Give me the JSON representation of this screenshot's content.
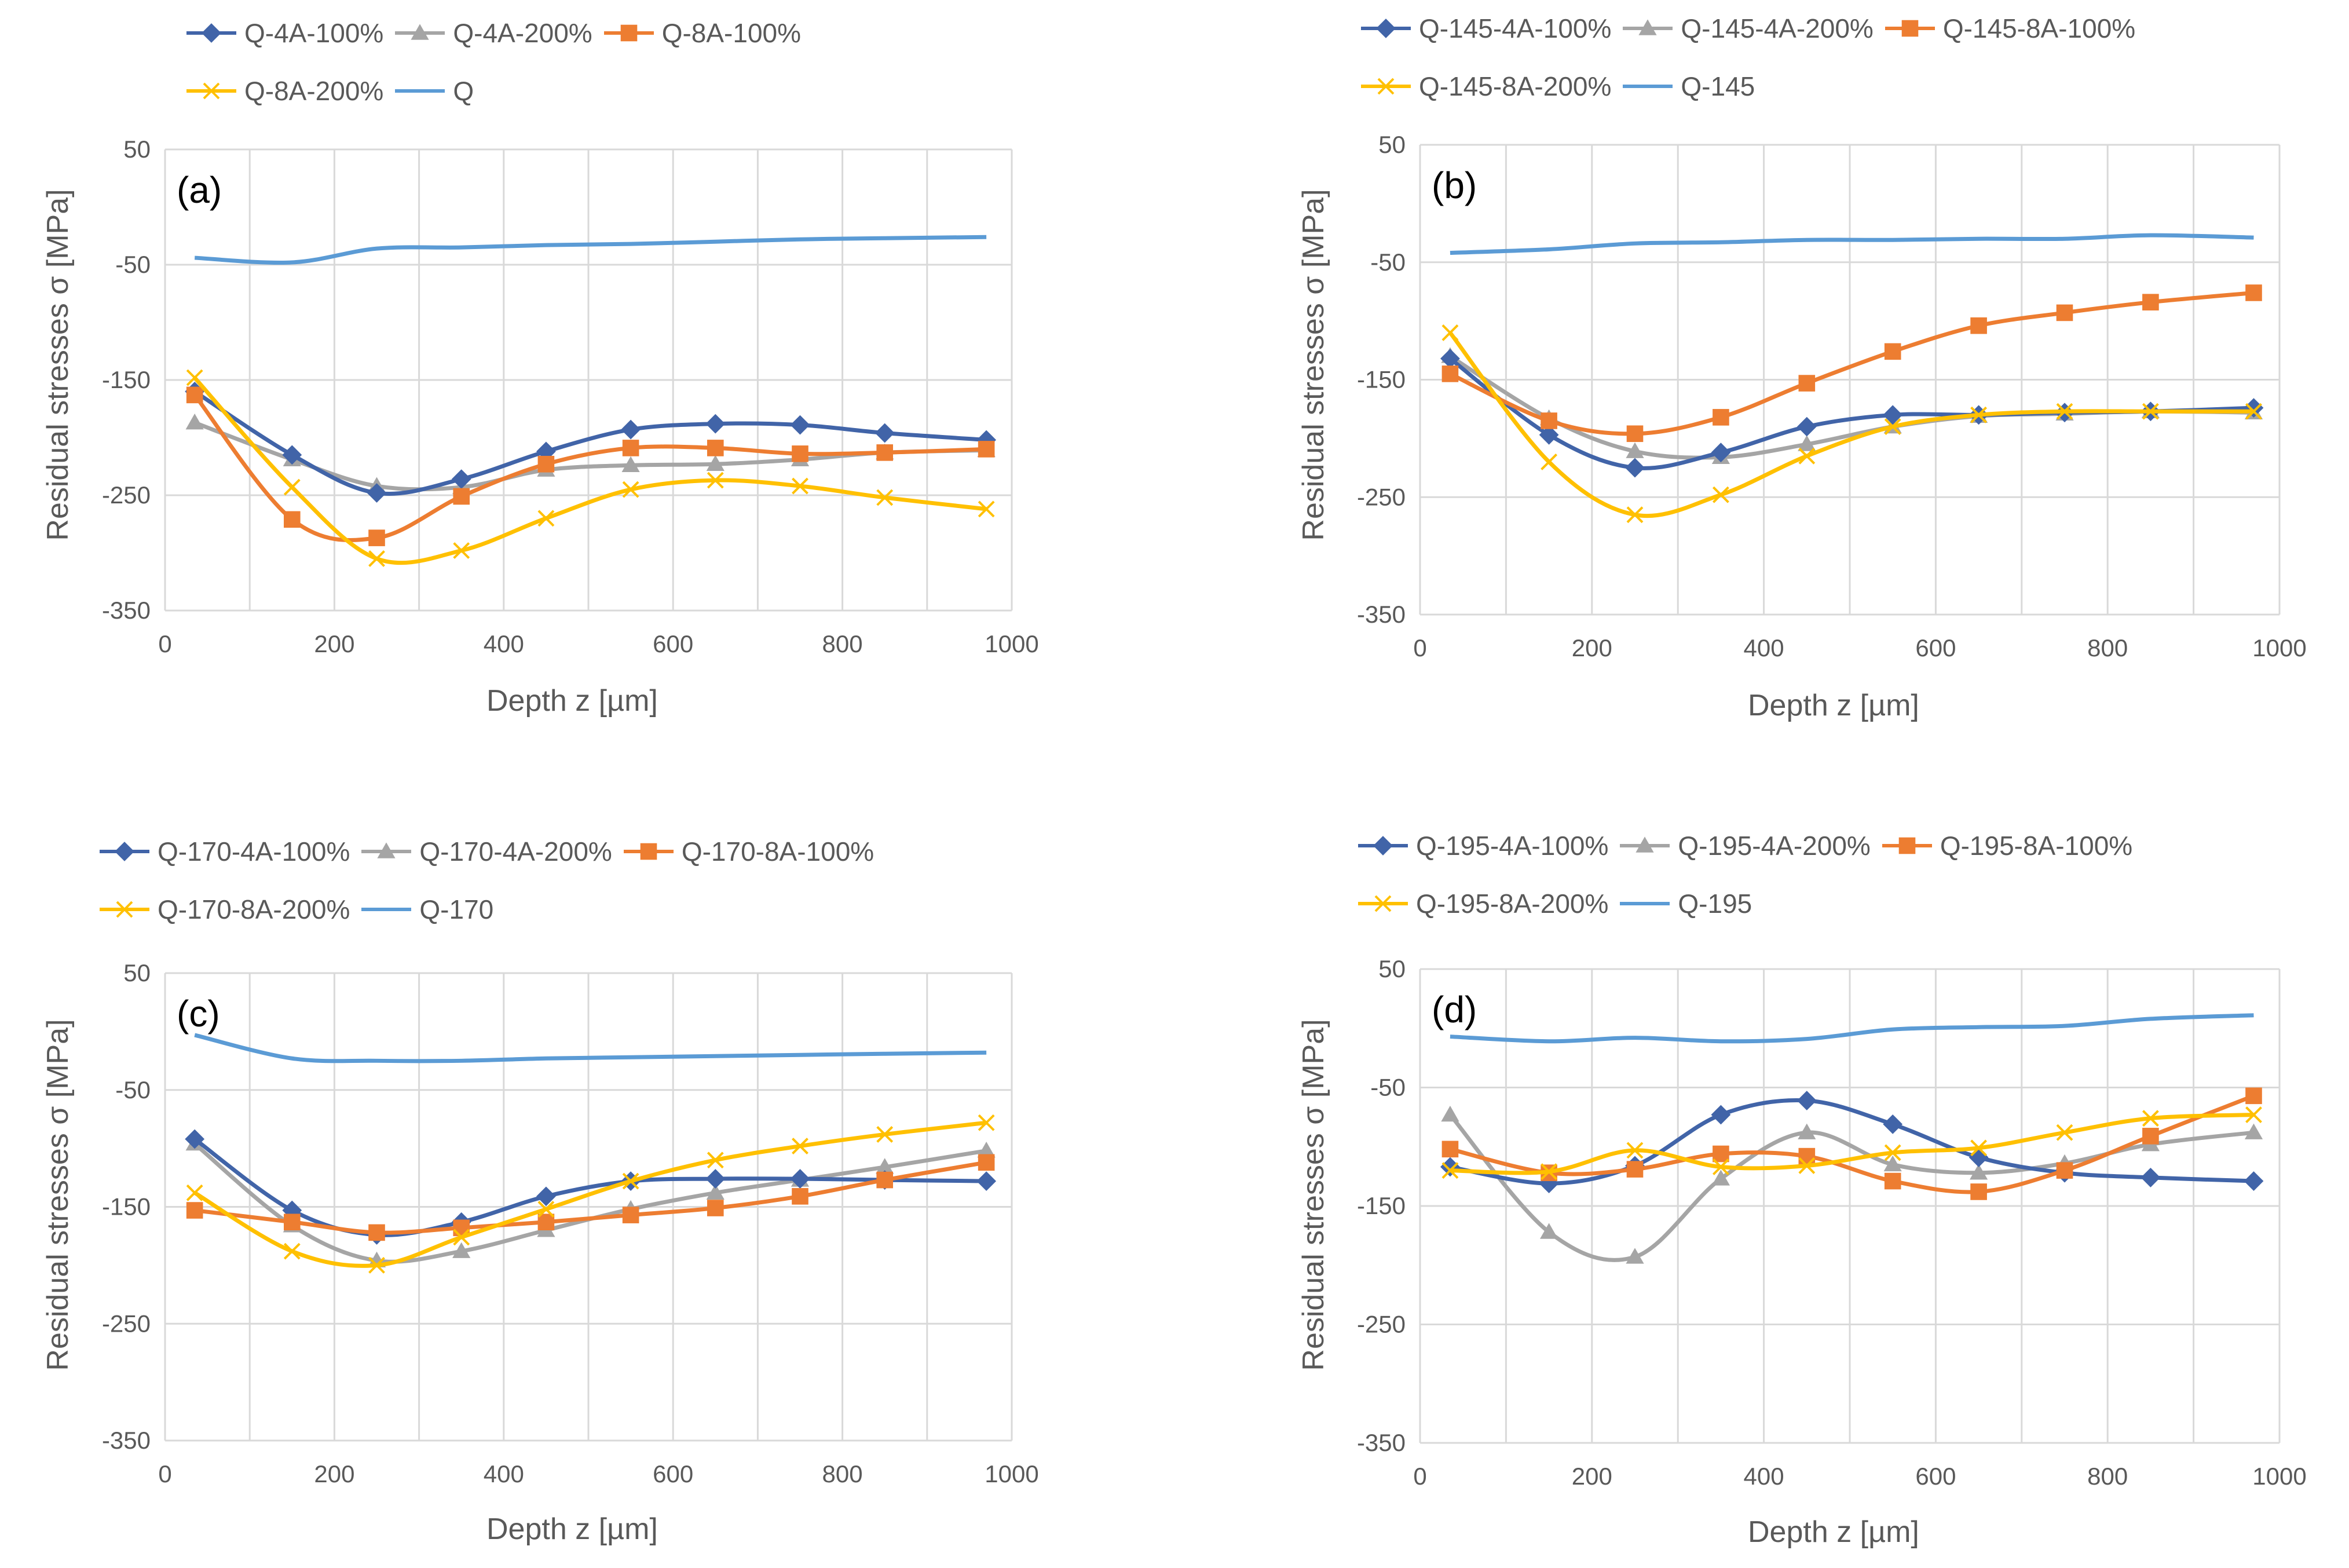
{
  "colors": {
    "blue_dark": "#4164A8",
    "gray": "#A5A5A5",
    "orange": "#ED7D31",
    "yellow": "#FFC000",
    "blue_light": "#5B9BD5",
    "grid": "#D9D9D9",
    "text": "#595959"
  },
  "chart_data": [
    {
      "type": "line",
      "panel_label": "(a)",
      "xlabel": "Depth z [µm]",
      "ylabel": "Residual stresses σ [MPa]",
      "xlim": [
        0,
        1000
      ],
      "ylim": [
        -350,
        50
      ],
      "xticks": [
        0,
        200,
        400,
        600,
        800,
        1000
      ],
      "yticks": [
        50,
        -50,
        -150,
        -250,
        -350
      ],
      "x": [
        35,
        150,
        250,
        350,
        450,
        550,
        650,
        750,
        850,
        970
      ],
      "series": [
        {
          "name": "Q-4A-100%",
          "color": "#4164A8",
          "marker": "diamond",
          "values": [
            -160,
            -215,
            -248,
            -236,
            -212,
            -193,
            -188,
            -189,
            -196,
            -202
          ]
        },
        {
          "name": "Q-4A-200%",
          "color": "#A5A5A5",
          "marker": "triangle",
          "values": [
            -187,
            -219,
            -242,
            -243,
            -228,
            -224,
            -223,
            -219,
            -213,
            -211
          ]
        },
        {
          "name": "Q-8A-100%",
          "color": "#ED7D31",
          "marker": "square",
          "values": [
            -163,
            -271,
            -287,
            -251,
            -223,
            -209,
            -209,
            -214,
            -213,
            -210
          ]
        },
        {
          "name": "Q-8A-200%",
          "color": "#FFC000",
          "marker": "x",
          "values": [
            -148,
            -243,
            -305,
            -298,
            -270,
            -245,
            -237,
            -242,
            -252,
            -262
          ]
        },
        {
          "name": "Q",
          "color": "#5B9BD5",
          "marker": "none",
          "x": [
            35,
            150,
            250,
            350,
            450,
            550,
            650,
            750,
            850,
            970
          ],
          "values": [
            -44,
            -48,
            -36,
            -35,
            -33,
            -32,
            -30,
            -28,
            -27,
            -26
          ]
        }
      ]
    },
    {
      "type": "line",
      "panel_label": "(b)",
      "xlabel": "Depth z [µm]",
      "ylabel": "Residual stresses σ [MPa]",
      "xlim": [
        0,
        1000
      ],
      "ylim": [
        -350,
        50
      ],
      "xticks": [
        0,
        200,
        400,
        600,
        800,
        1000
      ],
      "yticks": [
        50,
        -50,
        -150,
        -250,
        -350
      ],
      "x": [
        35,
        150,
        250,
        350,
        450,
        550,
        650,
        750,
        850,
        970
      ],
      "series": [
        {
          "name": "Q-145-4A-100%",
          "color": "#4164A8",
          "marker": "diamond",
          "values": [
            -132,
            -197,
            -225,
            -212,
            -190,
            -180,
            -180,
            -178,
            -177,
            -174
          ]
        },
        {
          "name": "Q-145-4A-200%",
          "color": "#A5A5A5",
          "marker": "triangle",
          "values": [
            -130,
            -183,
            -211,
            -216,
            -205,
            -190,
            -181,
            -179,
            -177,
            -178
          ]
        },
        {
          "name": "Q-145-8A-100%",
          "color": "#ED7D31",
          "marker": "square",
          "values": [
            -145,
            -185,
            -196,
            -182,
            -153,
            -126,
            -104,
            -93,
            -84,
            -76
          ]
        },
        {
          "name": "Q-145-8A-200%",
          "color": "#FFC000",
          "marker": "x",
          "values": [
            -110,
            -220,
            -265,
            -248,
            -215,
            -190,
            -180,
            -177,
            -177,
            -177
          ]
        },
        {
          "name": "Q-145",
          "color": "#5B9BD5",
          "marker": "none",
          "x": [
            35,
            150,
            250,
            350,
            450,
            550,
            650,
            750,
            850,
            970
          ],
          "values": [
            -42,
            -39,
            -34,
            -33,
            -31,
            -31,
            -30,
            -30,
            -27,
            -29
          ]
        }
      ]
    },
    {
      "type": "line",
      "panel_label": "(c)",
      "xlabel": "Depth z [µm]",
      "ylabel": "Residual stresses σ [MPa]",
      "xlim": [
        0,
        1000
      ],
      "ylim": [
        -350,
        50
      ],
      "xticks": [
        0,
        200,
        400,
        600,
        800,
        1000
      ],
      "yticks": [
        50,
        -50,
        -150,
        -250,
        -350
      ],
      "x": [
        35,
        150,
        250,
        350,
        450,
        550,
        650,
        750,
        850,
        970
      ],
      "series": [
        {
          "name": "Q-170-4A-100%",
          "color": "#4164A8",
          "marker": "diamond",
          "values": [
            -92,
            -153,
            -174,
            -163,
            -141,
            -128,
            -126,
            -126,
            -127,
            -128
          ]
        },
        {
          "name": "Q-170-4A-200%",
          "color": "#A5A5A5",
          "marker": "triangle",
          "values": [
            -96,
            -166,
            -196,
            -188,
            -170,
            -152,
            -138,
            -127,
            -116,
            -102
          ]
        },
        {
          "name": "Q-170-8A-100%",
          "color": "#ED7D31",
          "marker": "square",
          "values": [
            -153,
            -163,
            -172,
            -168,
            -163,
            -157,
            -151,
            -141,
            -127,
            -112
          ]
        },
        {
          "name": "Q-170-8A-200%",
          "color": "#FFC000",
          "marker": "x",
          "values": [
            -138,
            -188,
            -200,
            -176,
            -152,
            -128,
            -110,
            -98,
            -88,
            -78
          ]
        },
        {
          "name": "Q-170",
          "color": "#5B9BD5",
          "marker": "none",
          "x": [
            35,
            150,
            250,
            350,
            450,
            550,
            650,
            750,
            850,
            970
          ],
          "values": [
            -3,
            -23,
            -25,
            -25,
            -23,
            -22,
            -21,
            -20,
            -19,
            -18
          ]
        }
      ]
    },
    {
      "type": "line",
      "panel_label": "(d)",
      "xlabel": "Depth z [µm]",
      "ylabel": "Residual stresses σ [MPa]",
      "xlim": [
        0,
        1000
      ],
      "ylim": [
        -350,
        50
      ],
      "xticks": [
        0,
        200,
        400,
        600,
        800,
        1000
      ],
      "yticks": [
        50,
        -50,
        -150,
        -250,
        -350
      ],
      "x": [
        35,
        150,
        250,
        350,
        450,
        550,
        650,
        750,
        850,
        970
      ],
      "series": [
        {
          "name": "Q-195-4A-100%",
          "color": "#4164A8",
          "marker": "diamond",
          "values": [
            -117,
            -131,
            -116,
            -73,
            -61,
            -81,
            -109,
            -122,
            -126,
            -129
          ]
        },
        {
          "name": "Q-195-4A-200%",
          "color": "#A5A5A5",
          "marker": "triangle",
          "values": [
            -73,
            -172,
            -193,
            -127,
            -88,
            -115,
            -122,
            -114,
            -98,
            -88
          ]
        },
        {
          "name": "Q-195-8A-100%",
          "color": "#ED7D31",
          "marker": "square",
          "values": [
            -102,
            -122,
            -119,
            -106,
            -108,
            -129,
            -138,
            -120,
            -91,
            -57
          ]
        },
        {
          "name": "Q-195-8A-200%",
          "color": "#FFC000",
          "marker": "x",
          "values": [
            -120,
            -121,
            -103,
            -117,
            -116,
            -105,
            -101,
            -88,
            -76,
            -73
          ]
        },
        {
          "name": "Q-195",
          "color": "#5B9BD5",
          "marker": "none",
          "x": [
            35,
            150,
            250,
            350,
            450,
            550,
            650,
            750,
            850,
            970
          ],
          "values": [
            -7,
            -11,
            -8,
            -11,
            -9,
            -1,
            1,
            2,
            8,
            11
          ]
        }
      ]
    }
  ]
}
